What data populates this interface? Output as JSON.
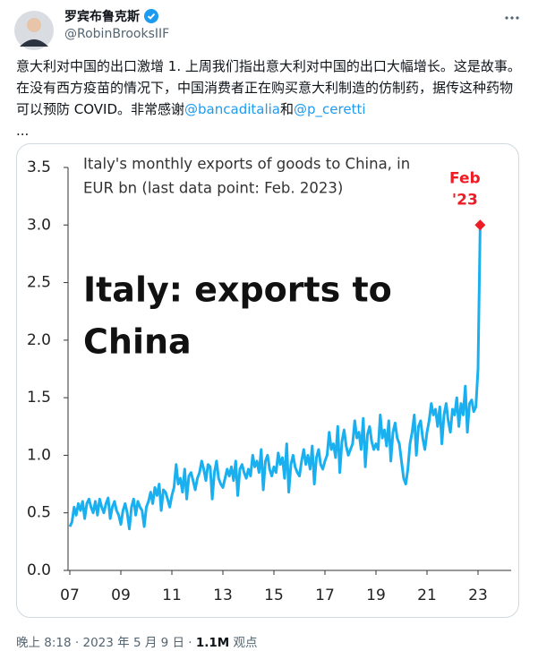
{
  "tweet": {
    "name": "罗宾布鲁克斯",
    "handle": "@RobinBrooksIIF",
    "text": "意大利对中国的出口激增 1. 上周我们指出意大利对中国的出口大幅增长。这是故事。在没有西方疫苗的情况下，中国消费者正在购买意大利制造的仿制药，据传这种药物可以预防 COVID。非常感谢",
    "mention_1": "@bancaditalia",
    "conjunction": "和",
    "mention_2": "@p_ceretti",
    "ellipsis": "...",
    "time": "晚上 8:18",
    "separator": "·",
    "date": "2023 年 5 月 9 日",
    "views": "1.1M",
    "views_label": "观点"
  },
  "chart_data": {
    "type": "line",
    "title": [
      "Italy's monthly exports of goods to China, in",
      "EUR bn (last data point: Feb. 2023)"
    ],
    "annotation": [
      "Italy: exports to",
      "China"
    ],
    "point_label": [
      "Feb",
      "'23"
    ],
    "x": [
      2007,
      2007.083,
      2007.167,
      2007.25,
      2007.333,
      2007.417,
      2007.5,
      2007.583,
      2007.667,
      2007.75,
      2007.833,
      2007.917,
      2008,
      2008.083,
      2008.167,
      2008.25,
      2008.333,
      2008.417,
      2008.5,
      2008.583,
      2008.667,
      2008.75,
      2008.833,
      2008.917,
      2009,
      2009.083,
      2009.167,
      2009.25,
      2009.333,
      2009.417,
      2009.5,
      2009.583,
      2009.667,
      2009.75,
      2009.833,
      2009.917,
      2010,
      2010.083,
      2010.167,
      2010.25,
      2010.333,
      2010.417,
      2010.5,
      2010.583,
      2010.667,
      2010.75,
      2010.833,
      2010.917,
      2011,
      2011.083,
      2011.167,
      2011.25,
      2011.333,
      2011.417,
      2011.5,
      2011.583,
      2011.667,
      2011.75,
      2011.833,
      2011.917,
      2012,
      2012.083,
      2012.167,
      2012.25,
      2012.333,
      2012.417,
      2012.5,
      2012.583,
      2012.667,
      2012.75,
      2012.833,
      2012.917,
      2013,
      2013.083,
      2013.167,
      2013.25,
      2013.333,
      2013.417,
      2013.5,
      2013.583,
      2013.667,
      2013.75,
      2013.833,
      2013.917,
      2014,
      2014.083,
      2014.167,
      2014.25,
      2014.333,
      2014.417,
      2014.5,
      2014.583,
      2014.667,
      2014.75,
      2014.833,
      2014.917,
      2015,
      2015.083,
      2015.167,
      2015.25,
      2015.333,
      2015.417,
      2015.5,
      2015.583,
      2015.667,
      2015.75,
      2015.833,
      2015.917,
      2016,
      2016.083,
      2016.167,
      2016.25,
      2016.333,
      2016.417,
      2016.5,
      2016.583,
      2016.667,
      2016.75,
      2016.833,
      2016.917,
      2017,
      2017.083,
      2017.167,
      2017.25,
      2017.333,
      2017.417,
      2017.5,
      2017.583,
      2017.667,
      2017.75,
      2017.833,
      2017.917,
      2018,
      2018.083,
      2018.167,
      2018.25,
      2018.333,
      2018.417,
      2018.5,
      2018.583,
      2018.667,
      2018.75,
      2018.833,
      2018.917,
      2019,
      2019.083,
      2019.167,
      2019.25,
      2019.333,
      2019.417,
      2019.5,
      2019.583,
      2019.667,
      2019.75,
      2019.833,
      2019.917,
      2020,
      2020.083,
      2020.167,
      2020.25,
      2020.333,
      2020.417,
      2020.5,
      2020.583,
      2020.667,
      2020.75,
      2020.833,
      2020.917,
      2021,
      2021.083,
      2021.167,
      2021.25,
      2021.333,
      2021.417,
      2021.5,
      2021.583,
      2021.667,
      2021.75,
      2021.833,
      2021.917,
      2022,
      2022.083,
      2022.167,
      2022.25,
      2022.333,
      2022.417,
      2022.5,
      2022.583,
      2022.667,
      2022.75,
      2022.833,
      2022.917,
      2023,
      2023.083
    ],
    "series": [
      {
        "color": "#1ab0f0",
        "marker_color": "#ee1c25",
        "values": [
          0.38,
          0.42,
          0.55,
          0.48,
          0.58,
          0.52,
          0.6,
          0.45,
          0.58,
          0.62,
          0.55,
          0.5,
          0.6,
          0.48,
          0.62,
          0.55,
          0.5,
          0.58,
          0.63,
          0.45,
          0.55,
          0.6,
          0.52,
          0.48,
          0.4,
          0.52,
          0.58,
          0.5,
          0.36,
          0.55,
          0.62,
          0.48,
          0.6,
          0.55,
          0.52,
          0.38,
          0.55,
          0.6,
          0.68,
          0.58,
          0.72,
          0.65,
          0.75,
          0.52,
          0.7,
          0.68,
          0.62,
          0.55,
          0.65,
          0.72,
          0.92,
          0.75,
          0.8,
          0.68,
          0.88,
          0.62,
          0.82,
          0.85,
          0.78,
          0.7,
          0.8,
          0.85,
          0.95,
          0.88,
          0.78,
          0.92,
          0.9,
          0.62,
          0.85,
          0.95,
          0.8,
          0.75,
          0.72,
          0.8,
          0.88,
          0.82,
          0.9,
          0.78,
          0.95,
          0.65,
          0.88,
          0.92,
          0.85,
          0.8,
          0.88,
          0.82,
          1.0,
          0.9,
          0.95,
          0.85,
          1.05,
          0.7,
          0.95,
          1.0,
          0.88,
          0.82,
          0.9,
          0.85,
          1.02,
          0.92,
          0.98,
          0.8,
          1.1,
          0.68,
          0.92,
          1.0,
          0.9,
          0.85,
          0.82,
          0.95,
          1.05,
          0.92,
          1.0,
          0.88,
          1.08,
          0.75,
          0.98,
          1.05,
          0.92,
          0.88,
          0.95,
          1.0,
          1.2,
          1.05,
          1.1,
          0.98,
          1.25,
          0.85,
          1.12,
          1.22,
          1.08,
          1.0,
          1.05,
          1.1,
          1.3,
          1.15,
          1.2,
          1.05,
          1.32,
          0.9,
          1.18,
          1.25,
          1.12,
          1.05,
          1.1,
          1.05,
          1.35,
          1.15,
          1.22,
          1.08,
          1.3,
          0.95,
          1.2,
          1.28,
          1.15,
          1.1,
          0.95,
          0.8,
          0.75,
          0.88,
          1.1,
          1.2,
          1.35,
          1.0,
          1.25,
          1.3,
          1.15,
          1.05,
          1.2,
          1.3,
          1.45,
          1.35,
          1.4,
          1.25,
          1.42,
          1.1,
          1.35,
          1.45,
          1.3,
          1.2,
          1.4,
          1.35,
          1.5,
          1.25,
          1.45,
          1.35,
          1.6,
          1.2,
          1.45,
          1.48,
          1.38,
          1.42,
          1.75,
          3.0
        ]
      }
    ],
    "xlim": [
      2007,
      2023.6
    ],
    "xticks": [
      {
        "value": 2007,
        "label": "07"
      },
      {
        "value": 2009,
        "label": "09"
      },
      {
        "value": 2011,
        "label": "11"
      },
      {
        "value": 2013,
        "label": "13"
      },
      {
        "value": 2015,
        "label": "15"
      },
      {
        "value": 2017,
        "label": "17"
      },
      {
        "value": 2019,
        "label": "19"
      },
      {
        "value": 2021,
        "label": "21"
      },
      {
        "value": 2023,
        "label": "23"
      }
    ],
    "ylim": [
      0,
      3.5
    ],
    "yticks": [
      {
        "value": 0,
        "label": "0.0"
      },
      {
        "value": 0.5,
        "label": "0.5"
      },
      {
        "value": 1,
        "label": "1.0"
      },
      {
        "value": 1.5,
        "label": "1.5"
      },
      {
        "value": 2,
        "label": "2.0"
      },
      {
        "value": 2.5,
        "label": "2.5"
      },
      {
        "value": 3,
        "label": "3.0"
      },
      {
        "value": 3.5,
        "label": "3.5"
      }
    ],
    "grid": false
  }
}
